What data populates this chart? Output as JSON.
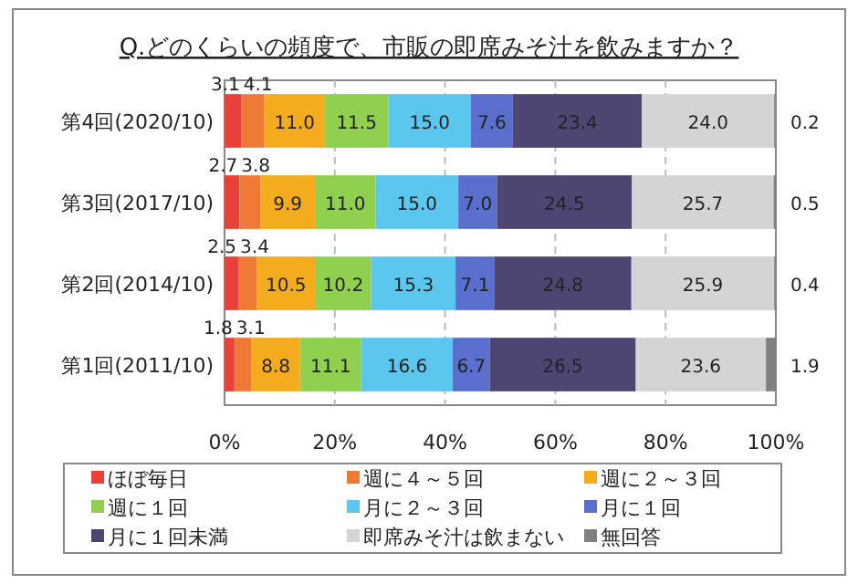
{
  "chart_data": {
    "type": "bar",
    "orientation": "horizontal",
    "stacked": true,
    "title": "Q.どのくらいの頻度で、市販の即席みそ汁を飲みますか？",
    "categories": [
      "第4回(2020/10)",
      "第3回(2017/10)",
      "第2回(2014/10)",
      "第1回(2011/10)"
    ],
    "series": [
      {
        "name": "ほぼ毎日",
        "color": "#e8413a",
        "values": [
          3.1,
          2.7,
          2.5,
          1.8
        ],
        "value_labels": [
          "3.1",
          "2.7",
          "2.5",
          "1.8"
        ]
      },
      {
        "name": "週に４～５回",
        "color": "#ee7a35",
        "values": [
          4.1,
          3.8,
          3.4,
          3.1
        ],
        "value_labels": [
          "4.1",
          "3.8",
          "3.4",
          "3.1"
        ]
      },
      {
        "name": "週に２～３回",
        "color": "#f2ac1e",
        "values": [
          11.0,
          9.9,
          10.5,
          8.8
        ],
        "value_labels": [
          "11.0",
          "9.9",
          "10.5",
          "8.8"
        ]
      },
      {
        "name": "週に１回",
        "color": "#8fd14f",
        "values": [
          11.5,
          11.0,
          10.2,
          11.1
        ],
        "value_labels": [
          "11.5",
          "11.0",
          "10.2",
          "11.1"
        ]
      },
      {
        "name": "月に２～３回",
        "color": "#5bc6ee",
        "values": [
          15.0,
          15.0,
          15.3,
          16.6
        ],
        "value_labels": [
          "15.0",
          "15.0",
          "15.3",
          "16.6"
        ]
      },
      {
        "name": "月に１回",
        "color": "#5a6ecd",
        "values": [
          7.6,
          7.0,
          7.1,
          6.7
        ],
        "value_labels": [
          "7.6",
          "7.0",
          "7.1",
          "6.7"
        ]
      },
      {
        "name": "月に１回未満",
        "color": "#4e4672",
        "values": [
          23.4,
          24.5,
          24.8,
          26.5
        ],
        "value_labels": [
          "23.4",
          "24.5",
          "24.8",
          "26.5"
        ]
      },
      {
        "name": "即席みそ汁は飲まない",
        "color": "#d4d4d4",
        "values": [
          24.0,
          25.7,
          25.9,
          23.6
        ],
        "value_labels": [
          "24.0",
          "25.7",
          "25.9",
          "23.6"
        ]
      },
      {
        "name": "無回答",
        "color": "#808080",
        "values": [
          0.2,
          0.5,
          0.4,
          1.9
        ],
        "value_labels": [
          "0.2",
          "0.5",
          "0.4",
          "1.9"
        ]
      }
    ],
    "xlim": [
      0,
      100
    ],
    "xticks": [
      {
        "value": 0,
        "label": "0%"
      },
      {
        "value": 20,
        "label": "20%"
      },
      {
        "value": 40,
        "label": "40%"
      },
      {
        "value": 60,
        "label": "60%"
      },
      {
        "value": 80,
        "label": "80%"
      },
      {
        "value": 100,
        "label": "100%"
      }
    ],
    "grid": "x",
    "legend": "bottom"
  }
}
